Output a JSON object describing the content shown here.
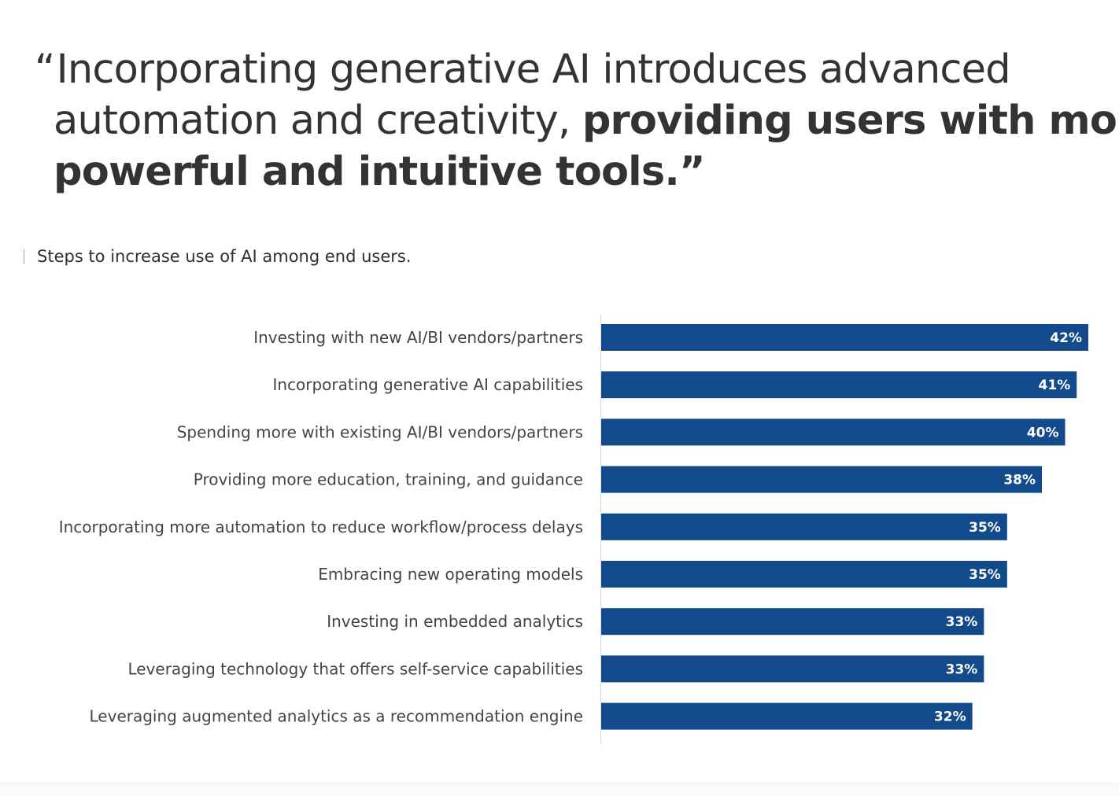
{
  "quote": {
    "open_mark": "“",
    "line1": "Incorporating generative AI introduces advanced",
    "line2_regular": "automation and creativity, ",
    "line2_bold": "providing users with more",
    "line3_bold": "powerful and intuitive tools.",
    "close_mark": "”"
  },
  "subtitle": "Steps to increase use of AI among end users.",
  "colors": {
    "bar": "#124a8c",
    "axis": "#d8d8d8",
    "label_text": "#444444",
    "value_text": "#ffffff"
  },
  "chart_data": {
    "type": "bar",
    "orientation": "horizontal",
    "title": "Steps to increase use of AI among end users.",
    "xlabel": "",
    "ylabel": "",
    "xlim": [
      0,
      42
    ],
    "grid": false,
    "legend": "none",
    "categories": [
      "Investing with new AI/BI vendors/partners",
      "Incorporating generative AI capabilities",
      "Spending more with existing AI/BI vendors/partners",
      "Providing more education, training, and guidance",
      "Incorporating more automation to reduce workflow/process delays",
      "Embracing new operating models",
      "Investing in embedded analytics",
      "Leveraging technology that offers self-service capabilities",
      "Leveraging augmented analytics as a recommendation engine"
    ],
    "values": [
      42,
      41,
      40,
      38,
      35,
      35,
      33,
      33,
      32
    ],
    "value_labels": [
      "42%",
      "41%",
      "40%",
      "38%",
      "35%",
      "35%",
      "33%",
      "33%",
      "32%"
    ]
  }
}
